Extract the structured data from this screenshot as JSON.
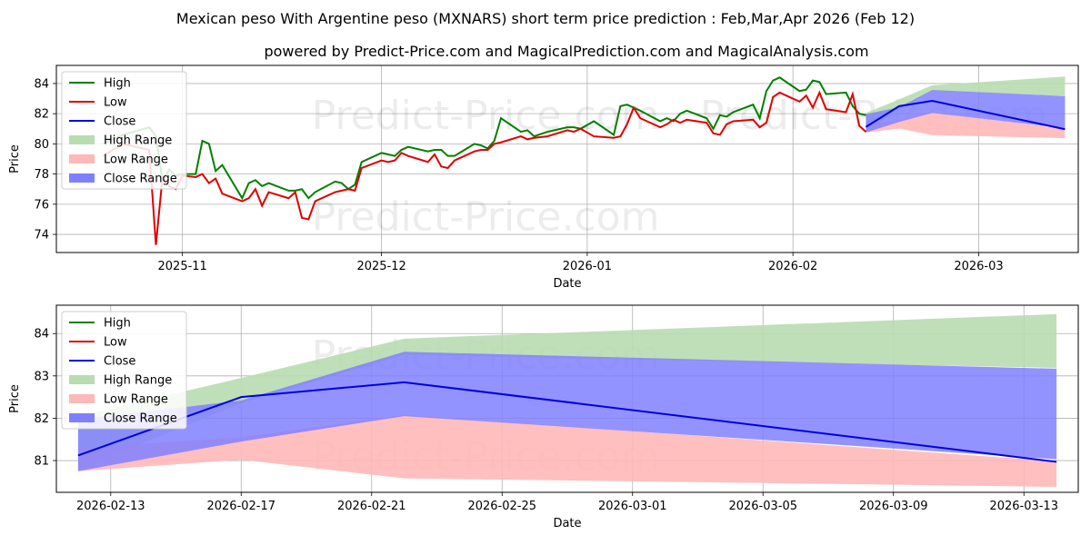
{
  "title": "Mexican peso With Argentine peso (MXNARS) short term price prediction : Feb,Mar,Apr 2026 (Feb 12)",
  "subtitle": "powered by Predict-Price.com and MagicalPrediction.com and MagicalAnalysis.com",
  "watermark": "Predict-Price.com",
  "colors": {
    "high": "#008000",
    "low": "#e00000",
    "close": "#0000e0",
    "high_range": "#b8dcb0",
    "low_range": "#ffb8b8",
    "close_range": "#8080ff",
    "grid": "#b0b0b0"
  },
  "chart_data": [
    {
      "type": "line",
      "name": "full-history",
      "xlabel": "Date",
      "ylabel": "Price",
      "ylim": [
        72.8,
        85.2
      ],
      "xlim": [
        "2025-10-13",
        "2026-03-16"
      ],
      "grid": true,
      "legend_position": "top-left",
      "x_ticks": [
        {
          "date": "2025-11-01",
          "label": "2025-11"
        },
        {
          "date": "2025-12-01",
          "label": "2025-12"
        },
        {
          "date": "2026-01-01",
          "label": "2026-01"
        },
        {
          "date": "2026-02-01",
          "label": "2026-02"
        },
        {
          "date": "2026-03-01",
          "label": "2026-03"
        }
      ],
      "y_ticks": [
        74,
        76,
        78,
        80,
        82,
        84
      ],
      "legend": [
        "High",
        "Low",
        "Close",
        "High Range",
        "Low Range",
        "Close Range"
      ],
      "high_series": {
        "dates": [
          "2025-10-20",
          "2025-10-23",
          "2025-10-27",
          "2025-10-28",
          "2025-10-29",
          "2025-10-30",
          "2025-10-31",
          "2025-11-01",
          "2025-11-03",
          "2025-11-04",
          "2025-11-05",
          "2025-11-06",
          "2025-11-07",
          "2025-11-10",
          "2025-11-11",
          "2025-11-12",
          "2025-11-13",
          "2025-11-14",
          "2025-11-17",
          "2025-11-18",
          "2025-11-19",
          "2025-11-20",
          "2025-11-21",
          "2025-11-24",
          "2025-11-25",
          "2025-11-26",
          "2025-11-27",
          "2025-11-28",
          "2025-12-01",
          "2025-12-02",
          "2025-12-03",
          "2025-12-04",
          "2025-12-05",
          "2025-12-08",
          "2025-12-09",
          "2025-12-10",
          "2025-12-11",
          "2025-12-12",
          "2025-12-15",
          "2025-12-16",
          "2025-12-17",
          "2025-12-18",
          "2025-12-19",
          "2025-12-22",
          "2025-12-23",
          "2025-12-24",
          "2025-12-26",
          "2025-12-29",
          "2025-12-30",
          "2025-12-31",
          "2026-01-02",
          "2026-01-05",
          "2026-01-06",
          "2026-01-07",
          "2026-01-08",
          "2026-01-09",
          "2026-01-12",
          "2026-01-13",
          "2026-01-14",
          "2026-01-15",
          "2026-01-16",
          "2026-01-19",
          "2026-01-20",
          "2026-01-21",
          "2026-01-22",
          "2026-01-23",
          "2026-01-26",
          "2026-01-27",
          "2026-01-28",
          "2026-01-29",
          "2026-01-30",
          "2026-02-02",
          "2026-02-03",
          "2026-02-04",
          "2026-02-05",
          "2026-02-06",
          "2026-02-09",
          "2026-02-10",
          "2026-02-11",
          "2026-02-12"
        ],
        "values": [
          80.0,
          80.6,
          81.1,
          80.5,
          77.5,
          78.3,
          77.9,
          78.0,
          78.0,
          80.2,
          80.0,
          78.2,
          78.6,
          76.4,
          77.4,
          77.6,
          77.2,
          77.4,
          76.9,
          76.9,
          77.0,
          76.4,
          76.8,
          77.5,
          77.4,
          77.0,
          77.3,
          78.8,
          79.4,
          79.3,
          79.2,
          79.6,
          79.8,
          79.5,
          79.6,
          79.6,
          79.2,
          79.2,
          80.0,
          79.9,
          79.7,
          80.2,
          81.7,
          80.8,
          80.9,
          80.5,
          80.8,
          81.1,
          81.1,
          81.0,
          81.5,
          80.6,
          82.5,
          82.6,
          82.4,
          82.2,
          81.5,
          81.7,
          81.5,
          82.0,
          82.2,
          81.7,
          81.0,
          81.9,
          81.8,
          82.1,
          82.6,
          81.7,
          83.5,
          84.2,
          84.4,
          83.5,
          83.6,
          84.2,
          84.1,
          83.3,
          83.4,
          82.5,
          82.0,
          81.9
        ]
      },
      "low_series": {
        "dates": [
          "2025-10-20",
          "2025-10-23",
          "2025-10-27",
          "2025-10-28",
          "2025-10-29",
          "2025-10-30",
          "2025-10-31",
          "2025-11-01",
          "2025-11-03",
          "2025-11-04",
          "2025-11-05",
          "2025-11-06",
          "2025-11-07",
          "2025-11-10",
          "2025-11-11",
          "2025-11-12",
          "2025-11-13",
          "2025-11-14",
          "2025-11-17",
          "2025-11-18",
          "2025-11-19",
          "2025-11-20",
          "2025-11-21",
          "2025-11-24",
          "2025-11-25",
          "2025-11-26",
          "2025-11-27",
          "2025-11-28",
          "2025-12-01",
          "2025-12-02",
          "2025-12-03",
          "2025-12-04",
          "2025-12-05",
          "2025-12-08",
          "2025-12-09",
          "2025-12-10",
          "2025-12-11",
          "2025-12-12",
          "2025-12-15",
          "2025-12-16",
          "2025-12-17",
          "2025-12-18",
          "2025-12-19",
          "2025-12-22",
          "2025-12-23",
          "2025-12-24",
          "2025-12-26",
          "2025-12-29",
          "2025-12-30",
          "2025-12-31",
          "2026-01-02",
          "2026-01-05",
          "2026-01-06",
          "2026-01-07",
          "2026-01-08",
          "2026-01-09",
          "2026-01-12",
          "2026-01-13",
          "2026-01-14",
          "2026-01-15",
          "2026-01-16",
          "2026-01-19",
          "2026-01-20",
          "2026-01-21",
          "2026-01-22",
          "2026-01-23",
          "2026-01-26",
          "2026-01-27",
          "2026-01-28",
          "2026-01-29",
          "2026-01-30",
          "2026-02-02",
          "2026-02-03",
          "2026-02-04",
          "2026-02-05",
          "2026-02-06",
          "2026-02-09",
          "2026-02-10",
          "2026-02-11",
          "2026-02-12"
        ],
        "values": [
          79.2,
          80.0,
          79.6,
          73.3,
          77.8,
          77.2,
          77.0,
          77.9,
          77.8,
          78.0,
          77.4,
          77.7,
          76.7,
          76.2,
          76.4,
          77.0,
          75.9,
          76.8,
          76.4,
          76.8,
          75.1,
          75.0,
          76.2,
          76.8,
          76.9,
          77.0,
          76.9,
          78.4,
          78.9,
          78.8,
          78.9,
          79.4,
          79.2,
          78.8,
          79.3,
          78.5,
          78.4,
          78.9,
          79.5,
          79.6,
          79.6,
          80.0,
          80.1,
          80.5,
          80.3,
          80.4,
          80.5,
          80.9,
          80.8,
          81.0,
          80.5,
          80.4,
          80.5,
          81.3,
          82.4,
          81.7,
          81.1,
          81.3,
          81.6,
          81.4,
          81.6,
          81.4,
          80.7,
          80.6,
          81.3,
          81.5,
          81.6,
          81.1,
          81.4,
          83.1,
          83.4,
          82.8,
          83.2,
          82.4,
          83.4,
          82.3,
          82.1,
          83.3,
          81.2,
          80.8
        ]
      }
    },
    {
      "type": "area",
      "name": "forecast-zoom",
      "xlabel": "Date",
      "ylabel": "Price",
      "ylim": [
        80.25,
        84.67
      ],
      "xlim": [
        "2026-02-11T08:00",
        "2026-03-14T16:00"
      ],
      "grid": true,
      "legend_position": "top-left",
      "x_ticks": [
        {
          "date": "2026-02-13",
          "label": "2026-02-13"
        },
        {
          "date": "2026-02-17",
          "label": "2026-02-17"
        },
        {
          "date": "2026-02-21",
          "label": "2026-02-21"
        },
        {
          "date": "2026-02-25",
          "label": "2026-02-25"
        },
        {
          "date": "2026-03-01",
          "label": "2026-03-01"
        },
        {
          "date": "2026-03-05",
          "label": "2026-03-05"
        },
        {
          "date": "2026-03-09",
          "label": "2026-03-09"
        },
        {
          "date": "2026-03-13",
          "label": "2026-03-13"
        }
      ],
      "y_ticks": [
        81,
        82,
        83,
        84
      ],
      "legend": [
        "High",
        "Low",
        "Close",
        "High Range",
        "Low Range",
        "Close Range"
      ],
      "forecast_dates": [
        "2026-02-12",
        "2026-02-17",
        "2026-02-22",
        "2026-03-14"
      ],
      "close": [
        81.12,
        82.5,
        82.85,
        80.97
      ],
      "high_range": {
        "upper": [
          82.05,
          82.95,
          83.88,
          84.46
        ],
        "lower": [
          80.8,
          82.35,
          83.5,
          83.19
        ]
      },
      "low_range": {
        "upper": [
          81.3,
          81.55,
          82.08,
          80.98
        ],
        "lower": [
          80.75,
          81.02,
          80.58,
          80.38
        ]
      },
      "close_range": {
        "upper": [
          81.97,
          82.42,
          83.57,
          83.17
        ],
        "lower": [
          80.75,
          81.45,
          82.05,
          81.03
        ]
      }
    }
  ]
}
